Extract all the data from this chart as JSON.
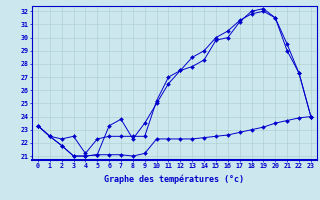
{
  "xlabel": "Graphe des températures (°c)",
  "bg_color": "#cce8ee",
  "line_color": "#0000cc",
  "grid_color": "#aacccc",
  "ylim": [
    20.7,
    32.4
  ],
  "xlim": [
    -0.5,
    23.5
  ],
  "yticks": [
    21,
    22,
    23,
    24,
    25,
    26,
    27,
    28,
    29,
    30,
    31,
    32
  ],
  "xticks": [
    0,
    1,
    2,
    3,
    4,
    5,
    6,
    7,
    8,
    9,
    10,
    11,
    12,
    13,
    14,
    15,
    16,
    17,
    18,
    19,
    20,
    21,
    22,
    23
  ],
  "line1_x": [
    0,
    1,
    2,
    3,
    4,
    5,
    6,
    7,
    8,
    9,
    10,
    11,
    12,
    13,
    14,
    15,
    16,
    17,
    18,
    19,
    20,
    21,
    22,
    23
  ],
  "line1_y": [
    23.3,
    22.5,
    21.8,
    21.0,
    21.0,
    21.1,
    21.1,
    21.1,
    21.0,
    21.2,
    22.3,
    22.3,
    22.3,
    22.3,
    22.4,
    22.5,
    22.6,
    22.8,
    23.0,
    23.2,
    23.5,
    23.7,
    23.9,
    24.0
  ],
  "line2_x": [
    0,
    1,
    2,
    3,
    4,
    5,
    6,
    7,
    8,
    9,
    10,
    11,
    12,
    13,
    14,
    15,
    16,
    17,
    18,
    19,
    20,
    21,
    22,
    23
  ],
  "line2_y": [
    23.3,
    22.5,
    21.8,
    21.0,
    21.0,
    21.1,
    23.3,
    23.8,
    22.3,
    23.5,
    25.0,
    26.5,
    27.5,
    27.8,
    28.3,
    29.8,
    30.0,
    31.2,
    32.0,
    32.2,
    31.5,
    29.0,
    27.3,
    24.0
  ],
  "line3_x": [
    0,
    1,
    2,
    3,
    4,
    5,
    6,
    7,
    8,
    9,
    10,
    11,
    12,
    13,
    14,
    15,
    16,
    17,
    18,
    19,
    20,
    21,
    22,
    23
  ],
  "line3_y": [
    23.3,
    22.5,
    22.3,
    22.5,
    21.2,
    22.3,
    22.5,
    22.5,
    22.5,
    22.5,
    25.2,
    27.0,
    27.5,
    28.5,
    29.0,
    30.0,
    30.5,
    31.3,
    31.8,
    32.0,
    31.5,
    29.5,
    27.3,
    24.0
  ]
}
